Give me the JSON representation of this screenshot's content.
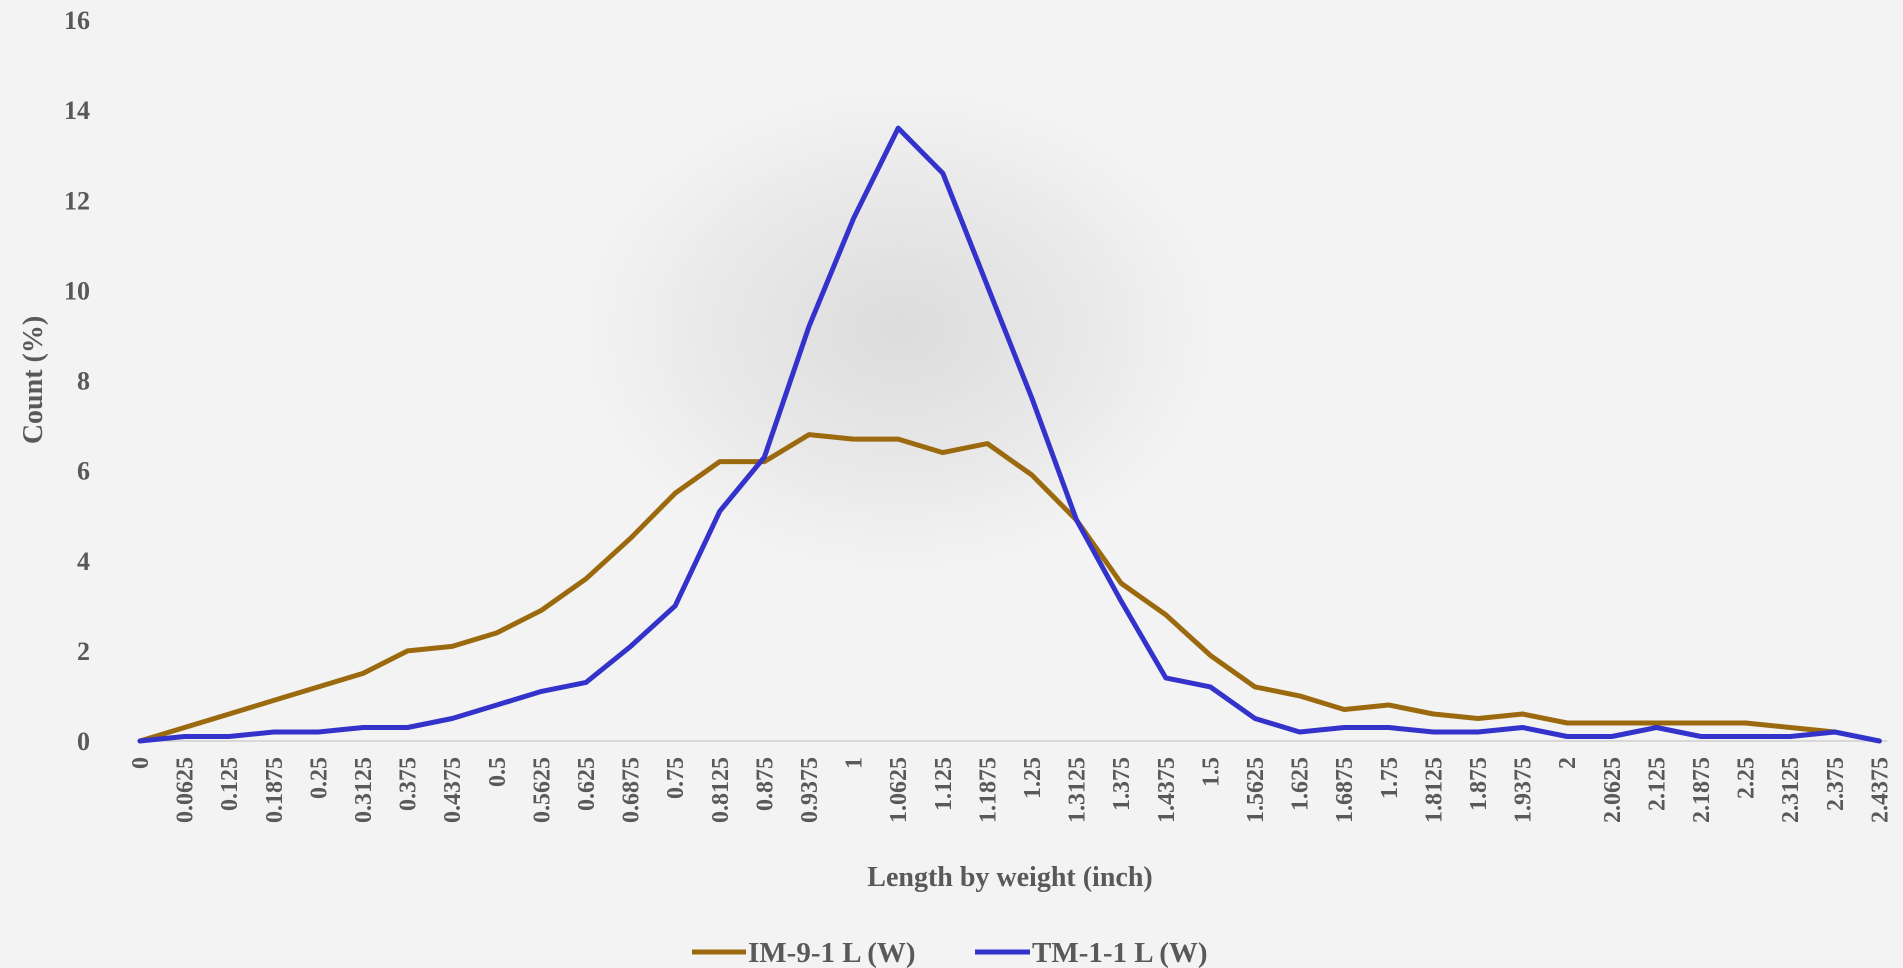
{
  "chart_data": {
    "type": "line",
    "xlabel": "Length by weight (inch)",
    "ylabel": "Count (%)",
    "ylim": [
      0,
      16
    ],
    "yticks": [
      "0",
      "2",
      "4",
      "6",
      "8",
      "10",
      "12",
      "14",
      "16"
    ],
    "legend_position": "bottom",
    "grid": false,
    "categories": [
      "0",
      "0.0625",
      "0.125",
      "0.1875",
      "0.25",
      "0.3125",
      "0.375",
      "0.4375",
      "0.5",
      "0.5625",
      "0.625",
      "0.6875",
      "0.75",
      "0.8125",
      "0.875",
      "0.9375",
      "1",
      "1.0625",
      "1.125",
      "1.1875",
      "1.25",
      "1.3125",
      "1.375",
      "1.4375",
      "1.5",
      "1.5625",
      "1.625",
      "1.6875",
      "1.75",
      "1.8125",
      "1.875",
      "1.9375",
      "2",
      "2.0625",
      "2.125",
      "2.1875",
      "2.25",
      "2.3125",
      "2.375",
      "2.4375"
    ],
    "series": [
      {
        "name": "IM-9-1 L (W)",
        "color": "#9c6a0e",
        "values": [
          0,
          0.3,
          0.6,
          0.9,
          1.2,
          1.5,
          2.0,
          2.1,
          2.4,
          2.9,
          3.6,
          4.5,
          5.5,
          6.2,
          6.2,
          6.8,
          6.7,
          6.7,
          6.4,
          6.6,
          5.9,
          4.9,
          3.5,
          2.8,
          1.9,
          1.2,
          1.0,
          0.7,
          0.8,
          0.6,
          0.5,
          0.6,
          0.4,
          0.4,
          0.4,
          0.4,
          0.4,
          0.3,
          0.2,
          null
        ]
      },
      {
        "name": "TM-1-1 L (W)",
        "color": "#3333cc",
        "values": [
          0,
          0.1,
          0.1,
          0.2,
          0.2,
          0.3,
          0.3,
          0.5,
          0.8,
          1.1,
          1.3,
          2.1,
          3.0,
          5.1,
          6.3,
          9.2,
          11.6,
          13.6,
          12.6,
          10.1,
          7.6,
          4.9,
          3.1,
          1.4,
          1.2,
          0.5,
          0.2,
          0.3,
          0.3,
          0.2,
          0.2,
          0.3,
          0.1,
          0.1,
          0.3,
          0.1,
          0.1,
          0.1,
          0.2,
          0.0
        ]
      }
    ]
  }
}
